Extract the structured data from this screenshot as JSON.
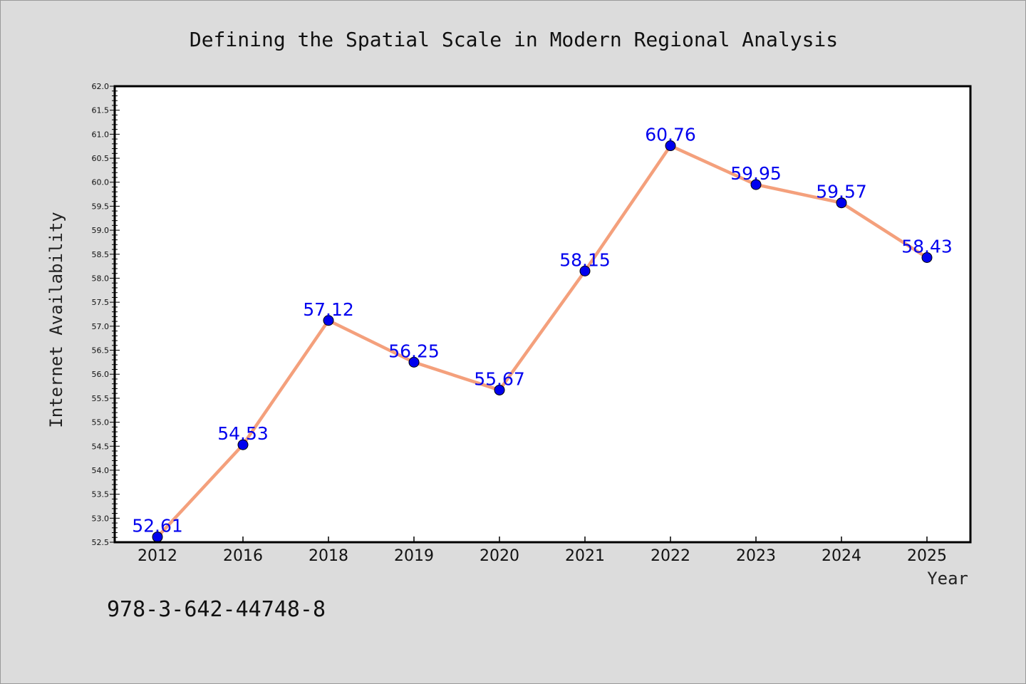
{
  "chart_data": {
    "type": "line",
    "title": "Defining the Spatial Scale in Modern Regional Analysis",
    "xlabel": "Year",
    "ylabel": "Internet Availability",
    "categories": [
      "2012",
      "2016",
      "2018",
      "2019",
      "2020",
      "2021",
      "2022",
      "2023",
      "2024",
      "2025"
    ],
    "series": [
      {
        "values": [
          52.61,
          54.53,
          57.12,
          56.25,
          55.67,
          58.15,
          60.76,
          59.95,
          59.57,
          58.43
        ],
        "data_labels": [
          "52.61",
          "54.53",
          "57.12",
          "56.25",
          "55.67",
          "58.15",
          "60.76",
          "59.95",
          "59.57",
          "58.43"
        ]
      }
    ],
    "ylim": [
      52.5,
      62.0
    ],
    "yticks": [
      "52.5",
      "53.0",
      "53.5",
      "54.0",
      "54.5",
      "55.0",
      "55.5",
      "56.0",
      "56.5",
      "57.0",
      "57.5",
      "58.0",
      "58.5",
      "59.0",
      "59.5",
      "60.0",
      "60.5",
      "61.0",
      "61.5",
      "62.0"
    ],
    "grid": false,
    "legend": "none",
    "colors": {
      "line": "#f4a07c",
      "marker": "#0000ee",
      "data_label": "#0000ee",
      "background": "#dcdcdc",
      "plot_background": "#ffffff"
    }
  },
  "footer": {
    "isbn": "978-3-642-44748-8"
  }
}
